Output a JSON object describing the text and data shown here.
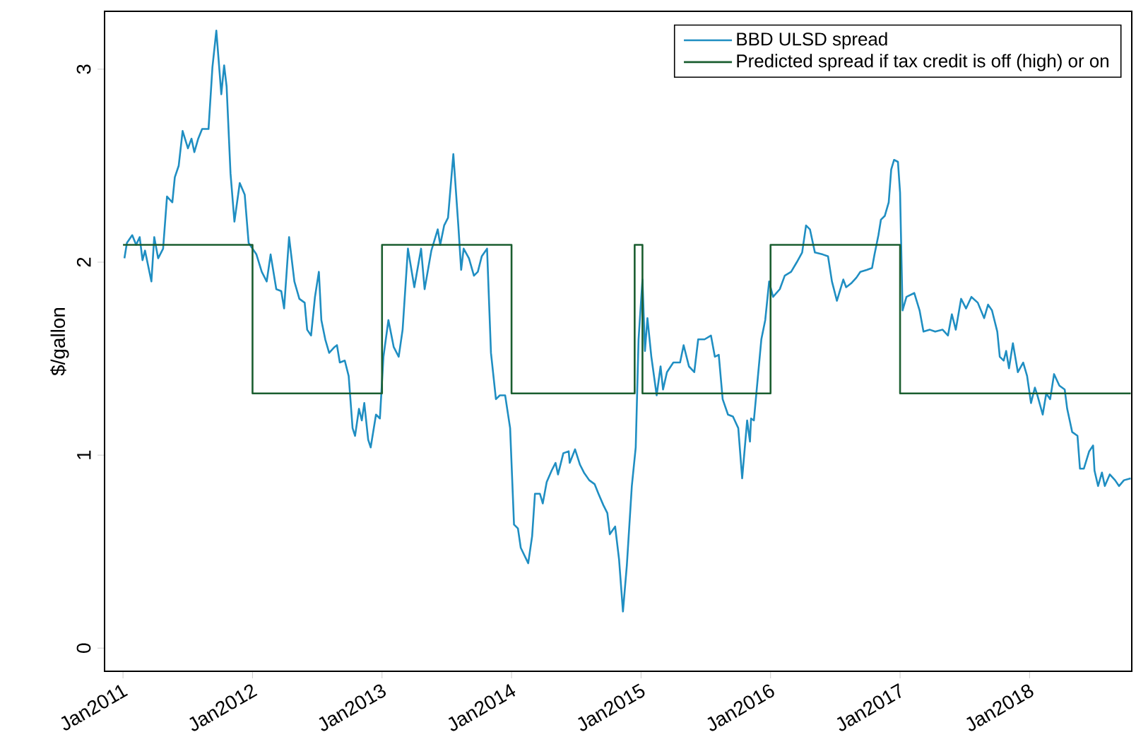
{
  "chart_data": {
    "type": "line",
    "ylabel": "$/gallon",
    "xlim": [
      "2010-11-10",
      "2018-10-16"
    ],
    "ylim": [
      -0.12,
      3.3
    ],
    "xticks": [
      {
        "value": "2011-01",
        "label": "Jan2011"
      },
      {
        "value": "2012-01",
        "label": "Jan2012"
      },
      {
        "value": "2013-01",
        "label": "Jan2013"
      },
      {
        "value": "2014-01",
        "label": "Jan2014"
      },
      {
        "value": "2015-01",
        "label": "Jan2015"
      },
      {
        "value": "2016-01",
        "label": "Jan2016"
      },
      {
        "value": "2017-01",
        "label": "Jan2017"
      },
      {
        "value": "2018-01",
        "label": "Jan2018"
      }
    ],
    "yticks": [
      0,
      1,
      2,
      3
    ],
    "legend": "top right",
    "grid": false,
    "series": [
      {
        "name": "BBD ULSD spread",
        "color": "#1f8ec2",
        "x": [
          "2011-01-05",
          "2011-01-12",
          "2011-01-27",
          "2011-02-07",
          "2011-02-17",
          "2011-02-25",
          "2011-03-04",
          "2011-03-22",
          "2011-03-30",
          "2011-04-10",
          "2011-04-24",
          "2011-05-05",
          "2011-05-20",
          "2011-05-27",
          "2011-06-07",
          "2011-06-18",
          "2011-07-03",
          "2011-07-13",
          "2011-07-21",
          "2011-08-01",
          "2011-08-12",
          "2011-08-30",
          "2011-09-10",
          "2011-09-21",
          "2011-10-05",
          "2011-10-13",
          "2011-10-20",
          "2011-10-31",
          "2011-11-11",
          "2011-11-26",
          "2011-12-10",
          "2011-12-21",
          "2012-01-12",
          "2012-01-27",
          "2012-02-10",
          "2012-02-21",
          "2012-03-08",
          "2012-03-22",
          "2012-03-30",
          "2012-04-13",
          "2012-04-28",
          "2012-05-12",
          "2012-05-27",
          "2012-06-03",
          "2012-06-14",
          "2012-06-25",
          "2012-07-06",
          "2012-07-13",
          "2012-07-24",
          "2012-08-04",
          "2012-08-19",
          "2012-08-26",
          "2012-09-03",
          "2012-09-17",
          "2012-09-28",
          "2012-10-09",
          "2012-10-16",
          "2012-10-27",
          "2012-11-04",
          "2012-11-11",
          "2012-11-22",
          "2012-11-29",
          "2012-12-14",
          "2012-12-25",
          "2013-01-05",
          "2013-01-19",
          "2013-02-03",
          "2013-02-17",
          "2013-02-28",
          "2013-03-15",
          "2013-04-02",
          "2013-04-21",
          "2013-05-01",
          "2013-05-20",
          "2013-06-07",
          "2013-06-14",
          "2013-06-25",
          "2013-07-06",
          "2013-07-21",
          "2013-08-04",
          "2013-08-12",
          "2013-08-19",
          "2013-09-03",
          "2013-09-17",
          "2013-09-28",
          "2013-10-09",
          "2013-10-24",
          "2013-11-04",
          "2013-11-18",
          "2013-11-29",
          "2013-12-14",
          "2013-12-28",
          "2014-01-08",
          "2014-01-19",
          "2014-01-27",
          "2014-02-17",
          "2014-02-28",
          "2014-03-08",
          "2014-03-22",
          "2014-03-30",
          "2014-04-10",
          "2014-04-24",
          "2014-05-05",
          "2014-05-12",
          "2014-05-27",
          "2014-06-11",
          "2014-06-14",
          "2014-06-29",
          "2014-07-13",
          "2014-07-24",
          "2014-08-08",
          "2014-08-23",
          "2014-09-03",
          "2014-09-17",
          "2014-09-28",
          "2014-10-05",
          "2014-10-20",
          "2014-10-31",
          "2014-11-11",
          "2014-11-22",
          "2014-12-06",
          "2014-12-17",
          "2014-12-25",
          "2015-01-05",
          "2015-01-12",
          "2015-01-19",
          "2015-01-30",
          "2015-02-14",
          "2015-02-25",
          "2015-03-04",
          "2015-03-15",
          "2015-04-02",
          "2015-04-21",
          "2015-05-01",
          "2015-05-16",
          "2015-05-31",
          "2015-06-11",
          "2015-06-29",
          "2015-07-17",
          "2015-07-28",
          "2015-08-08",
          "2015-08-19",
          "2015-09-03",
          "2015-09-17",
          "2015-10-02",
          "2015-10-13",
          "2015-10-27",
          "2015-11-04",
          "2015-11-07",
          "2015-11-15",
          "2015-11-26",
          "2015-12-06",
          "2015-12-17",
          "2015-12-28",
          "2016-01-08",
          "2016-01-27",
          "2016-02-10",
          "2016-02-28",
          "2016-03-15",
          "2016-03-30",
          "2016-04-10",
          "2016-04-21",
          "2016-05-05",
          "2016-05-27",
          "2016-06-11",
          "2016-06-22",
          "2016-07-06",
          "2016-07-24",
          "2016-08-01",
          "2016-08-15",
          "2016-08-30",
          "2016-09-10",
          "2016-09-28",
          "2016-10-13",
          "2016-10-20",
          "2016-10-31",
          "2016-11-07",
          "2016-11-18",
          "2016-11-29",
          "2016-12-06",
          "2016-12-14",
          "2016-12-25",
          "2017-01-01",
          "2017-01-08",
          "2017-01-19",
          "2017-02-10",
          "2017-02-25",
          "2017-03-08",
          "2017-03-26",
          "2017-04-10",
          "2017-05-01",
          "2017-05-16",
          "2017-05-27",
          "2017-06-07",
          "2017-06-22",
          "2017-07-06",
          "2017-07-21",
          "2017-08-08",
          "2017-08-26",
          "2017-09-06",
          "2017-09-17",
          "2017-10-02",
          "2017-10-09",
          "2017-10-20",
          "2017-10-27",
          "2017-11-04",
          "2017-11-15",
          "2017-11-29",
          "2017-12-14",
          "2017-12-25",
          "2018-01-05",
          "2018-01-16",
          "2018-01-23",
          "2018-02-07",
          "2018-02-17",
          "2018-02-28",
          "2018-03-11",
          "2018-03-26",
          "2018-04-10",
          "2018-04-17",
          "2018-05-01",
          "2018-05-16",
          "2018-05-23",
          "2018-06-03",
          "2018-06-18",
          "2018-06-29",
          "2018-07-03",
          "2018-07-13",
          "2018-07-24",
          "2018-08-01",
          "2018-08-15",
          "2018-08-30",
          "2018-09-10",
          "2018-09-24",
          "2018-10-13"
        ],
        "values": [
          2.02,
          2.1,
          2.14,
          2.09,
          2.13,
          2.01,
          2.06,
          1.9,
          2.13,
          2.02,
          2.07,
          2.34,
          2.31,
          2.44,
          2.5,
          2.68,
          2.59,
          2.64,
          2.57,
          2.64,
          2.69,
          2.69,
          3.01,
          3.2,
          2.87,
          3.02,
          2.91,
          2.46,
          2.21,
          2.41,
          2.35,
          2.1,
          2.04,
          1.95,
          1.9,
          2.04,
          1.86,
          1.85,
          1.76,
          2.13,
          1.9,
          1.81,
          1.79,
          1.65,
          1.62,
          1.82,
          1.95,
          1.7,
          1.6,
          1.53,
          1.56,
          1.57,
          1.48,
          1.49,
          1.41,
          1.14,
          1.1,
          1.24,
          1.18,
          1.27,
          1.08,
          1.04,
          1.21,
          1.19,
          1.51,
          1.7,
          1.56,
          1.51,
          1.65,
          2.07,
          1.87,
          2.07,
          1.86,
          2.06,
          2.17,
          2.09,
          2.19,
          2.23,
          2.56,
          2.19,
          1.96,
          2.07,
          2.02,
          1.93,
          1.95,
          2.03,
          2.07,
          1.53,
          1.29,
          1.31,
          1.31,
          1.14,
          0.64,
          0.62,
          0.52,
          0.44,
          0.58,
          0.8,
          0.8,
          0.75,
          0.86,
          0.92,
          0.96,
          0.9,
          1.01,
          1.02,
          0.96,
          1.03,
          0.95,
          0.91,
          0.87,
          0.85,
          0.8,
          0.74,
          0.7,
          0.59,
          0.63,
          0.46,
          0.19,
          0.43,
          0.84,
          1.04,
          1.6,
          1.91,
          1.54,
          1.71,
          1.51,
          1.31,
          1.46,
          1.34,
          1.43,
          1.48,
          1.48,
          1.57,
          1.46,
          1.43,
          1.6,
          1.6,
          1.62,
          1.51,
          1.52,
          1.29,
          1.21,
          1.2,
          1.14,
          0.88,
          1.18,
          1.07,
          1.19,
          1.18,
          1.4,
          1.6,
          1.7,
          1.9,
          1.82,
          1.86,
          1.93,
          1.95,
          2.0,
          2.05,
          2.19,
          2.17,
          2.05,
          2.04,
          2.03,
          1.9,
          1.8,
          1.91,
          1.87,
          1.89,
          1.92,
          1.95,
          1.96,
          1.97,
          2.04,
          2.14,
          2.22,
          2.24,
          2.31,
          2.48,
          2.53,
          2.52,
          2.36,
          1.75,
          1.82,
          1.84,
          1.75,
          1.64,
          1.65,
          1.64,
          1.65,
          1.62,
          1.73,
          1.65,
          1.81,
          1.76,
          1.82,
          1.79,
          1.71,
          1.78,
          1.75,
          1.64,
          1.51,
          1.49,
          1.54,
          1.45,
          1.58,
          1.43,
          1.48,
          1.41,
          1.27,
          1.35,
          1.31,
          1.21,
          1.32,
          1.29,
          1.42,
          1.36,
          1.34,
          1.24,
          1.12,
          1.1,
          0.93,
          0.93,
          1.02,
          1.05,
          0.92,
          0.84,
          0.91,
          0.84,
          0.9,
          0.87,
          0.84,
          0.87,
          0.88
        ]
      },
      {
        "name": "Predicted spread if tax credit is off (high) or on",
        "type": "step",
        "color": "#1b5e30",
        "x": [
          "2011-01-01",
          "2012-01-01",
          "2013-01-01",
          "2014-01-01",
          "2014-12-14",
          "2015-01-05",
          "2016-01-01",
          "2017-01-01",
          "2018-10-13"
        ],
        "values": [
          2.09,
          1.32,
          2.09,
          1.32,
          2.09,
          1.32,
          2.09,
          1.32,
          1.32
        ]
      }
    ]
  }
}
